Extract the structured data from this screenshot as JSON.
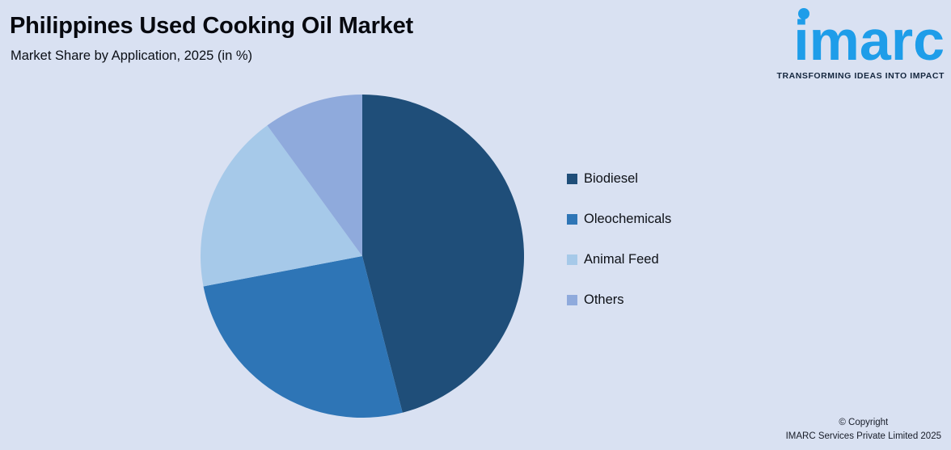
{
  "header": {
    "title": "Philippines Used Cooking Oil Market",
    "subtitle": "Market Share by Application, 2025 (in %)"
  },
  "chart_data": {
    "type": "pie",
    "title": "Philippines Used Cooking Oil Market",
    "subtitle": "Market Share by Application, 2025 (in %)",
    "unit": "%",
    "start_angle_deg": -90,
    "direction": "clockwise",
    "legend_position": "right",
    "data_labels_visible": false,
    "slices": [
      {
        "label": "Biodiesel",
        "value": 46,
        "color": "#1F4E79"
      },
      {
        "label": "Oleochemicals",
        "value": 26,
        "color": "#2E75B6"
      },
      {
        "label": "Animal Feed",
        "value": 18,
        "color": "#A6C9E9"
      },
      {
        "label": "Others",
        "value": 10,
        "color": "#8FAADC"
      }
    ]
  },
  "logo": {
    "text": "imarc",
    "tagline": "TRANSFORMING IDEAS INTO IMPACT"
  },
  "footer": {
    "line1": "© Copyright",
    "line2": "IMARC Services Private Limited 2025"
  },
  "colors": {
    "background": "#D9E1F2",
    "logo_blue": "#1E9DE9",
    "tagline_navy": "#14263E",
    "title_text": "#07090F"
  }
}
